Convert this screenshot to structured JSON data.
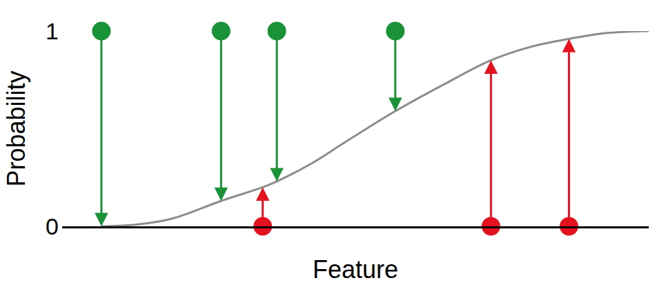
{
  "chart_data": {
    "type": "scatter",
    "x_label": "Feature",
    "y_label": "Probability",
    "xlim": [
      0,
      10
    ],
    "ylim": [
      0,
      1
    ],
    "yticks": [
      0,
      1
    ],
    "tick_labels": "y",
    "grid": true,
    "series": [
      {
        "type": "scatter",
        "marker": "circle",
        "color": "#1a9237",
        "x": [
          0.67,
          2.71,
          3.66,
          5.68
        ],
        "values": [
          1,
          1,
          1,
          1
        ],
        "arrow_to": [
          0.0,
          0.13,
          0.23,
          0.59
        ]
      },
      {
        "type": "scatter",
        "marker": "circle",
        "color": "#e3121e",
        "x": [
          3.42,
          7.31,
          8.64
        ],
        "values": [
          0,
          0,
          0
        ],
        "arrow_to": [
          0.2,
          0.85,
          0.96
        ]
      },
      {
        "type": "line",
        "line_style": "solid",
        "color": "#8c8c8c",
        "x": [
          0.67,
          1.29,
          1.88,
          2.71,
          3.42,
          3.66,
          4.24,
          4.82,
          5.68,
          6.59,
          7.31,
          8.0,
          8.64,
          9.29,
          10
        ],
        "values": [
          0.0,
          0.01,
          0.04,
          0.13,
          0.2,
          0.23,
          0.32,
          0.43,
          0.59,
          0.74,
          0.85,
          0.92,
          0.96,
          0.99,
          1.0
        ]
      }
    ]
  }
}
